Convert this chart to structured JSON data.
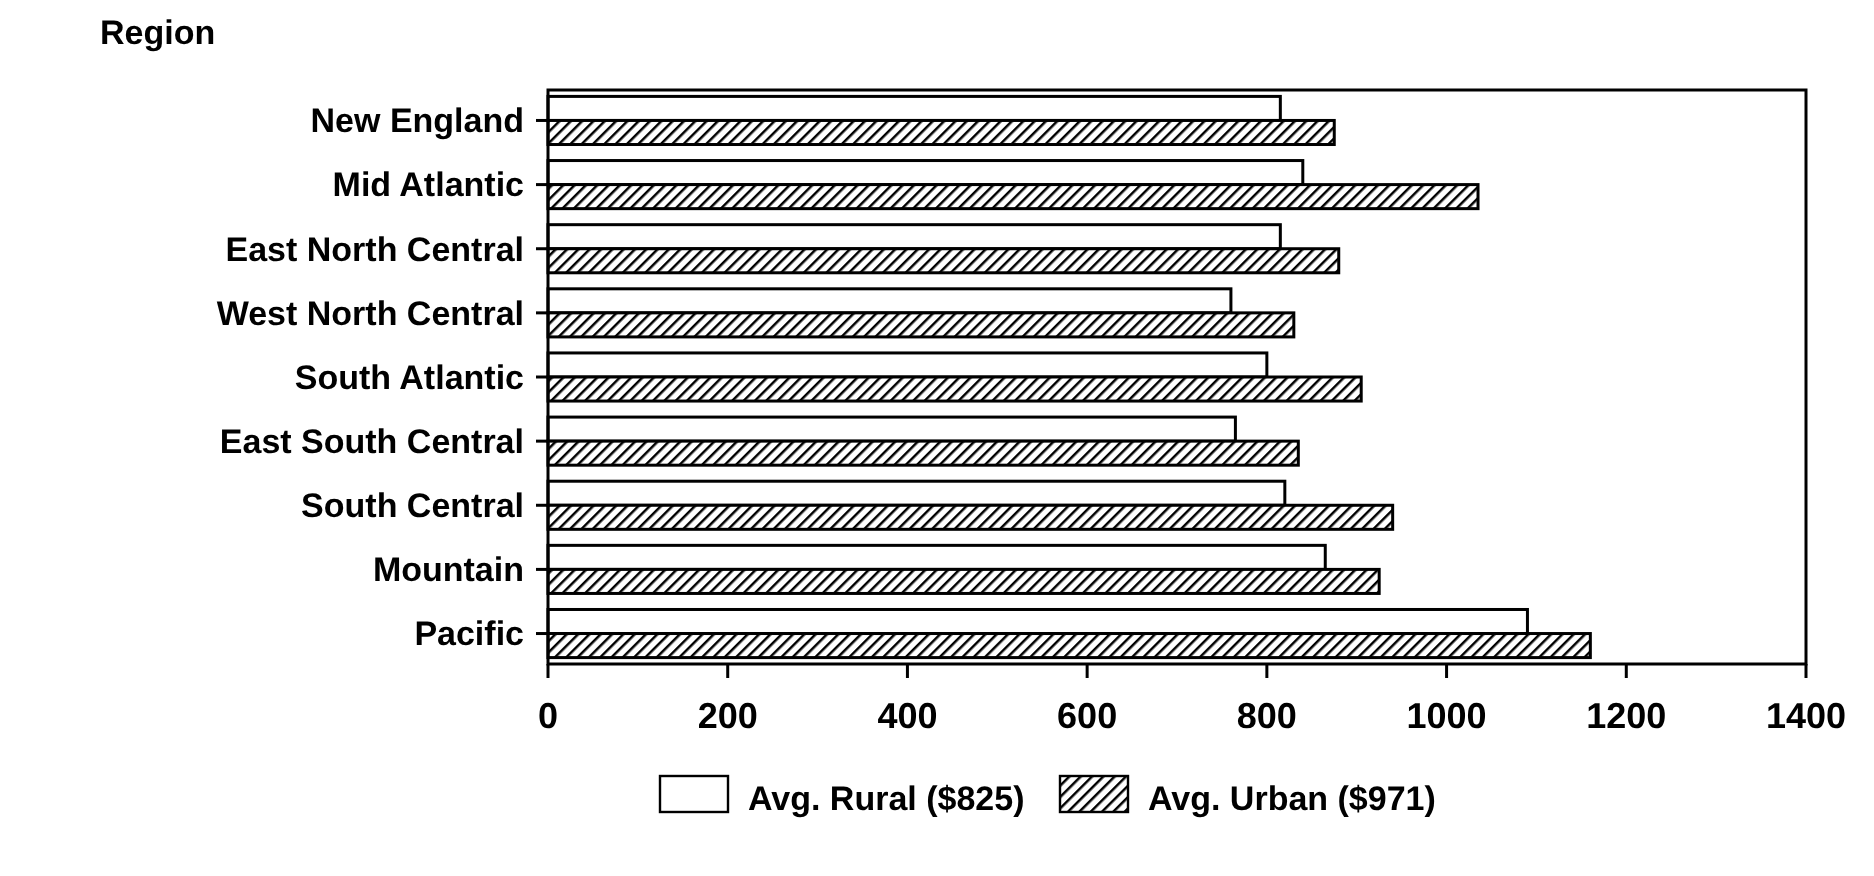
{
  "chart_data": {
    "type": "bar",
    "orientation": "horizontal",
    "ylabel": "Region",
    "categories": [
      "New England",
      "Mid Atlantic",
      "East North Central",
      "West North Central",
      "South Atlantic",
      "East South Central",
      "South Central",
      "Mountain",
      "Pacific"
    ],
    "series": [
      {
        "name": "Avg. Rural ($825)",
        "color": "#ffffff",
        "values": [
          815,
          840,
          815,
          760,
          800,
          765,
          820,
          865,
          1090
        ]
      },
      {
        "name": "Avg. Urban ($971)",
        "color": "#000000",
        "values": [
          875,
          1035,
          880,
          830,
          905,
          835,
          940,
          925,
          1160
        ]
      }
    ],
    "xlim": [
      0,
      1400
    ],
    "xticks": [
      0,
      200,
      400,
      600,
      800,
      1000,
      1200,
      1400
    ],
    "grid": false,
    "legend": "bottom"
  }
}
